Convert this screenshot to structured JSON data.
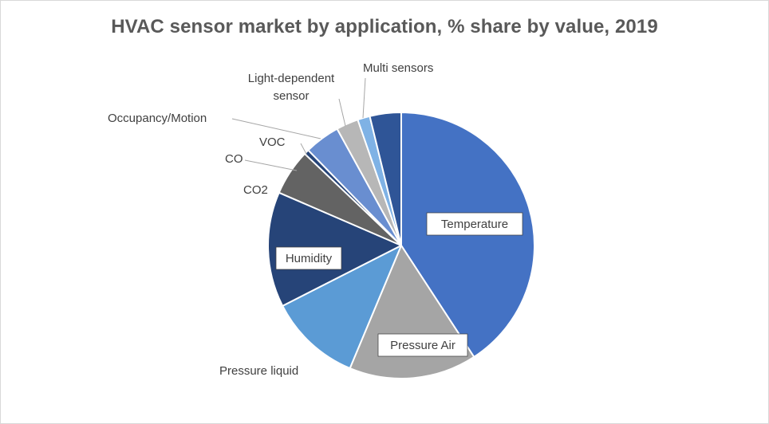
{
  "chart_data": {
    "type": "pie",
    "title": "HVAC sensor market by application, % share by value, 2019",
    "categories": [
      "Temperature",
      "Pressure Air",
      "Pressure liquid",
      "Humidity",
      "CO2",
      "CO",
      "VOC",
      "Occupancy/Motion",
      "Light-dependent sensor",
      "Multi sensors"
    ],
    "values": [
      40.8,
      15.5,
      11.2,
      14.0,
      5.6,
      0.6,
      4.3,
      2.7,
      1.5,
      3.8
    ],
    "unit": "%",
    "colors": [
      "#4472C4",
      "#A5A5A5",
      "#5B9BD5",
      "#264478",
      "#636363",
      "#264478",
      "#698ED0",
      "#B7B7B7",
      "#7FB2E5",
      "#2F5597"
    ],
    "labels_inside": [
      "Temperature",
      "Pressure Air",
      "Humidity"
    ],
    "label_lines": [
      "Light-dependent",
      "sensor"
    ]
  }
}
